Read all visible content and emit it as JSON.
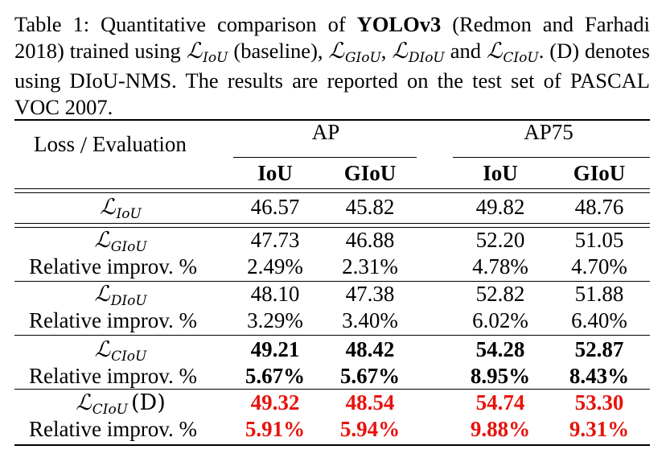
{
  "caption": {
    "prefix": "Table 1: Quantitative comparison of ",
    "model": "YOLOv3",
    "after_model": " (Redmon and Farhadi 2018) trained using ",
    "loss_iou": "IoU",
    "baseline": " (baseline), ",
    "loss_giou": "GIoU",
    "loss_diou": "DIoU",
    "and": " and ",
    "loss_ciou": "CIoU",
    "dnms_note": ". (D) denotes using DIoU-NMS. The results are reported on the test set of PASCAL VOC 2007."
  },
  "header": {
    "loss": "Loss",
    "slash": "/",
    "evaluation": "Evaluation",
    "group_ap": "AP",
    "group_ap75": "AP75",
    "col_iou_ap": "IoU",
    "col_giou_ap": "GIoU",
    "col_iou_ap75": "IoU",
    "col_giou_ap75": "GIoU"
  },
  "rows": [
    {
      "label": "L",
      "sub": "IoU",
      "values": [
        "46.57",
        "45.82",
        "49.82",
        "48.76"
      ],
      "style": "normal"
    },
    {
      "label": "L",
      "sub": "GIoU",
      "values": [
        "47.73",
        "46.88",
        "52.20",
        "51.05"
      ],
      "style": "normal"
    },
    {
      "label": "Relative improv. %",
      "values": [
        "2.49%",
        "2.31%",
        "4.78%",
        "4.70%"
      ],
      "style": "normal"
    },
    {
      "label": "L",
      "sub": "DIoU",
      "values": [
        "48.10",
        "47.38",
        "52.82",
        "51.88"
      ],
      "style": "normal"
    },
    {
      "label": "Relative improv. %",
      "values": [
        "3.29%",
        "3.40%",
        "6.02%",
        "6.40%"
      ],
      "style": "normal"
    },
    {
      "label": "L",
      "sub": "CIoU",
      "values": [
        "49.21",
        "48.42",
        "54.28",
        "52.87"
      ],
      "style": "bold"
    },
    {
      "label": "Relative improv. %",
      "values": [
        "5.67%",
        "5.67%",
        "8.95%",
        "8.43%"
      ],
      "style": "bold"
    },
    {
      "label": "L",
      "sub": "CIoU",
      "suffix": "(D)",
      "values": [
        "49.32",
        "48.54",
        "54.74",
        "53.30"
      ],
      "style": "red"
    },
    {
      "label": "Relative improv. %",
      "values": [
        "5.91%",
        "5.94%",
        "9.88%",
        "9.31%"
      ],
      "style": "red"
    }
  ],
  "colors": {
    "highlight": "#e8120c",
    "text": "#000000"
  }
}
